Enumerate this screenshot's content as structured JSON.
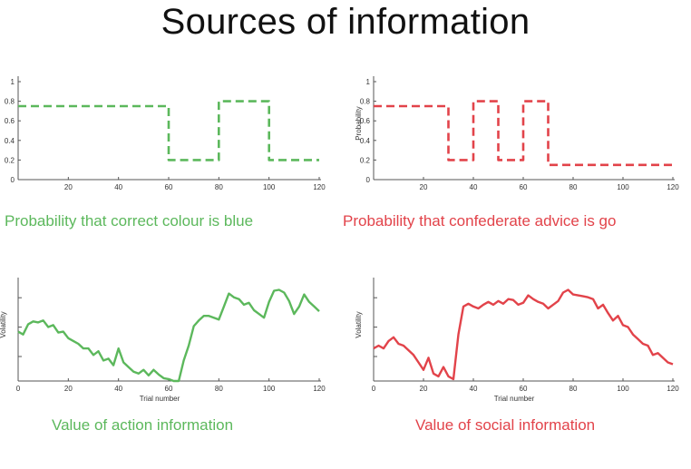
{
  "title": "Sources of information",
  "colors": {
    "green": "#5cb85c",
    "red": "#e2434a",
    "axis": "#555555"
  },
  "captions": {
    "panel_a": "Probability that correct colour is blue",
    "panel_b": "Probability that confederate advice is go",
    "panel_c": "Value of action information",
    "panel_d": "Value of social information"
  },
  "chart_data": [
    {
      "type": "line",
      "style": "dashed",
      "color": "green",
      "title": "Probability that correct colour is blue",
      "xlabel": "",
      "ylabel": "",
      "xlim": [
        0,
        120
      ],
      "ylim": [
        0,
        1
      ],
      "xticks": [
        20,
        40,
        60,
        80,
        100,
        120
      ],
      "yticks": [
        0,
        0.2,
        0.4,
        0.6,
        0.8,
        1
      ],
      "series": [
        {
          "x": [
            0,
            60,
            60,
            80,
            80,
            100,
            100,
            120
          ],
          "y": [
            0.75,
            0.75,
            0.2,
            0.2,
            0.8,
            0.8,
            0.2,
            0.2
          ]
        }
      ]
    },
    {
      "type": "line",
      "style": "dashed",
      "color": "red",
      "title": "Probability that confederate advice is go",
      "xlabel": "",
      "ylabel": "Probability",
      "xlim": [
        0,
        120
      ],
      "ylim": [
        0,
        1
      ],
      "xticks": [
        20,
        40,
        60,
        80,
        100,
        120
      ],
      "yticks": [
        0,
        0.2,
        0.4,
        0.6,
        0.8,
        1
      ],
      "series": [
        {
          "x": [
            0,
            30,
            30,
            40,
            40,
            50,
            50,
            60,
            60,
            70,
            70,
            120
          ],
          "y": [
            0.75,
            0.75,
            0.2,
            0.2,
            0.8,
            0.8,
            0.2,
            0.2,
            0.8,
            0.8,
            0.15,
            0.15
          ]
        }
      ]
    },
    {
      "type": "line",
      "style": "solid",
      "color": "green",
      "title": "Value of action information",
      "xlabel": "Trial number",
      "ylabel": "Volatility",
      "xlim": [
        0,
        120
      ],
      "ylim": [
        0,
        1
      ],
      "xticks": [
        0,
        20,
        40,
        60,
        80,
        100,
        120
      ],
      "yticks": [],
      "series": [
        {
          "x": [
            0,
            2,
            4,
            6,
            8,
            10,
            12,
            14,
            16,
            18,
            20,
            22,
            24,
            26,
            28,
            30,
            32,
            34,
            36,
            38,
            40,
            42,
            44,
            46,
            48,
            50,
            52,
            54,
            56,
            58,
            60,
            62,
            64,
            66,
            68,
            70,
            72,
            74,
            76,
            78,
            80,
            82,
            84,
            86,
            88,
            90,
            92,
            94,
            96,
            98,
            100,
            102,
            104,
            106,
            108,
            110,
            112,
            114,
            116,
            118,
            120
          ],
          "y": [
            0.53,
            0.5,
            0.61,
            0.64,
            0.63,
            0.65,
            0.58,
            0.6,
            0.52,
            0.53,
            0.46,
            0.43,
            0.4,
            0.35,
            0.35,
            0.28,
            0.32,
            0.22,
            0.24,
            0.17,
            0.35,
            0.2,
            0.15,
            0.1,
            0.08,
            0.12,
            0.06,
            0.12,
            0.07,
            0.03,
            0.02,
            0.0,
            0.0,
            0.22,
            0.38,
            0.59,
            0.65,
            0.7,
            0.7,
            0.68,
            0.66,
            0.8,
            0.94,
            0.9,
            0.88,
            0.82,
            0.84,
            0.76,
            0.72,
            0.68,
            0.85,
            0.97,
            0.98,
            0.95,
            0.86,
            0.72,
            0.8,
            0.93,
            0.85,
            0.8,
            0.75
          ]
        }
      ]
    },
    {
      "type": "line",
      "style": "solid",
      "color": "red",
      "title": "Value of social information",
      "xlabel": "Trial number",
      "ylabel": "Volatility",
      "xlim": [
        0,
        120
      ],
      "ylim": [
        0,
        1
      ],
      "xticks": [
        0,
        20,
        40,
        60,
        80,
        100,
        120
      ],
      "yticks": [],
      "series": [
        {
          "x": [
            0,
            2,
            4,
            6,
            8,
            10,
            12,
            14,
            16,
            18,
            20,
            22,
            24,
            26,
            28,
            30,
            32,
            34,
            36,
            38,
            40,
            42,
            44,
            46,
            48,
            50,
            52,
            54,
            56,
            58,
            60,
            62,
            64,
            66,
            68,
            70,
            72,
            74,
            76,
            78,
            80,
            82,
            84,
            86,
            88,
            90,
            92,
            94,
            96,
            98,
            100,
            102,
            104,
            106,
            108,
            110,
            112,
            114,
            116,
            118,
            120
          ],
          "y": [
            0.35,
            0.38,
            0.35,
            0.43,
            0.47,
            0.4,
            0.38,
            0.33,
            0.28,
            0.2,
            0.12,
            0.25,
            0.08,
            0.05,
            0.15,
            0.05,
            0.02,
            0.5,
            0.8,
            0.83,
            0.8,
            0.78,
            0.82,
            0.85,
            0.82,
            0.86,
            0.83,
            0.88,
            0.87,
            0.82,
            0.84,
            0.92,
            0.88,
            0.85,
            0.83,
            0.78,
            0.82,
            0.86,
            0.95,
            0.98,
            0.93,
            0.92,
            0.91,
            0.9,
            0.88,
            0.78,
            0.82,
            0.73,
            0.65,
            0.7,
            0.6,
            0.58,
            0.5,
            0.45,
            0.4,
            0.38,
            0.28,
            0.3,
            0.25,
            0.2,
            0.18
          ]
        }
      ]
    }
  ]
}
